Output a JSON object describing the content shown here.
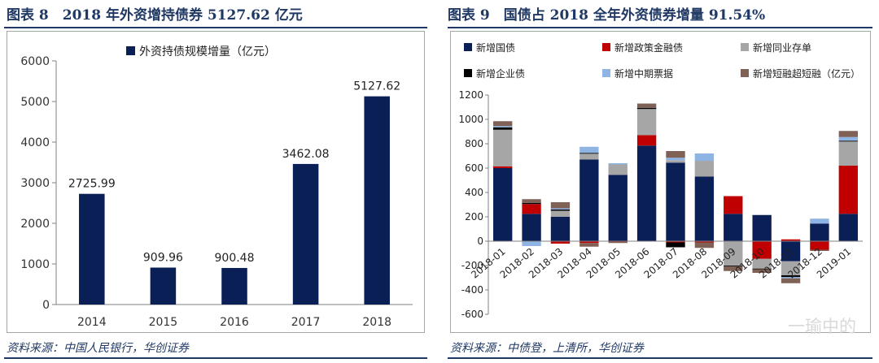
{
  "left": {
    "title": "图表 8　2018 年外资增持债券 5127.62 亿元",
    "source": "资料来源：中国人民银行，华创证券"
  },
  "right": {
    "title": "图表 9　国债占 2018 全年外资债券增量 91.54%",
    "source": "资料来源：中债登，上清所，华创证券"
  },
  "watermark": "一瑜中的",
  "chart_data": [
    {
      "type": "bar",
      "categories": [
        "2014",
        "2015",
        "2016",
        "2017",
        "2018"
      ],
      "series": [
        {
          "name": "外资持债规模增量（亿元）",
          "values": [
            2725.99,
            909.96,
            900.48,
            3462.08,
            5127.62
          ],
          "color": "#0b1f57"
        }
      ],
      "data_labels": [
        "2725.99",
        "909.96",
        "900.48",
        "3462.08",
        "5127.62"
      ],
      "ylim": [
        0,
        6000
      ],
      "yticks": [
        0,
        1000,
        2000,
        3000,
        4000,
        5000,
        6000
      ],
      "grid": false,
      "legend": "top"
    },
    {
      "type": "bar",
      "stacked": true,
      "categories": [
        "2018-01",
        "2018-02",
        "2018-03",
        "2018-04",
        "2018-05",
        "2018-06",
        "2018-07",
        "2018-08",
        "2018-09",
        "2018-10",
        "2018-11",
        "2018-12",
        "2019-01"
      ],
      "series": [
        {
          "name": "新增国债",
          "color": "#0b1f57",
          "values": [
            600,
            225,
            200,
            670,
            545,
            785,
            645,
            530,
            225,
            215,
            -165,
            145,
            225
          ]
        },
        {
          "name": "新增政策金融债",
          "color": "#c00000",
          "values": [
            15,
            80,
            -20,
            -15,
            -5,
            85,
            -10,
            -10,
            145,
            -145,
            15,
            -70,
            395
          ]
        },
        {
          "name": "新增同业存单",
          "color": "#a6a6a6",
          "values": [
            300,
            0,
            50,
            50,
            85,
            215,
            20,
            130,
            -200,
            -80,
            -115,
            0,
            200
          ]
        },
        {
          "name": "新增企业债",
          "color": "#000000",
          "values": [
            20,
            10,
            10,
            5,
            0,
            10,
            -40,
            0,
            -5,
            -5,
            -15,
            0,
            5
          ]
        },
        {
          "name": "新增中期票据",
          "color": "#8eb4e3",
          "values": [
            10,
            -40,
            10,
            50,
            10,
            0,
            20,
            60,
            0,
            0,
            -10,
            40,
            30
          ]
        },
        {
          "name": "新增短融超短融（亿元）",
          "color": "#7f6155",
          "values": [
            40,
            30,
            50,
            -30,
            -10,
            35,
            55,
            -45,
            -40,
            -30,
            -40,
            -10,
            50
          ]
        }
      ],
      "ylim": [
        -600,
        1200
      ],
      "yticks": [
        -600,
        -400,
        -200,
        0,
        200,
        400,
        600,
        800,
        1000,
        1200
      ],
      "grid": false,
      "legend": "top"
    }
  ]
}
